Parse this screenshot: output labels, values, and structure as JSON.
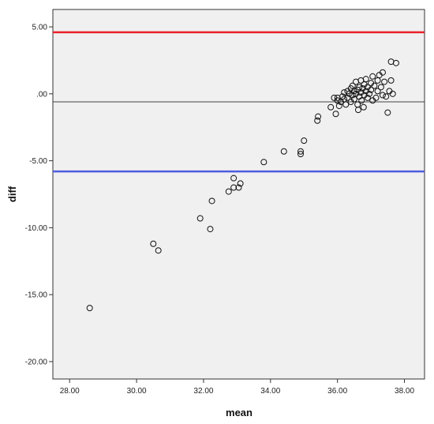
{
  "chart_data": {
    "type": "scatter",
    "title": "",
    "xlabel": "mean",
    "ylabel": "diff",
    "xlim": [
      27.5,
      38.6
    ],
    "ylim": [
      -21.3,
      6.3
    ],
    "x_ticks": [
      28,
      30,
      32,
      34,
      36,
      38
    ],
    "x_tick_labels": [
      "28.00",
      "30.00",
      "32.00",
      "34.00",
      "36.00",
      "38.00"
    ],
    "y_ticks": [
      5,
      0,
      -5,
      -10,
      -15,
      -20
    ],
    "y_tick_labels": [
      "5.00",
      ".00",
      "-5.00",
      "-10.00",
      "-15.00",
      "-20.00"
    ],
    "grid": false,
    "legend": "none",
    "reference_lines": [
      {
        "value": 4.6,
        "color": "#e8212b"
      },
      {
        "value": -0.6,
        "color": "#444444"
      },
      {
        "value": -5.8,
        "color": "#4e5de0"
      }
    ],
    "series": [
      {
        "marker": "open-circle",
        "color": "#111111",
        "points": [
          [
            28.6,
            -16.0
          ],
          [
            30.5,
            -11.2
          ],
          [
            30.65,
            -11.7
          ],
          [
            31.9,
            -9.3
          ],
          [
            32.2,
            -10.1
          ],
          [
            32.25,
            -8.0
          ],
          [
            32.75,
            -7.3
          ],
          [
            32.9,
            -7.0
          ],
          [
            32.9,
            -6.3
          ],
          [
            33.05,
            -7.0
          ],
          [
            33.1,
            -6.7
          ],
          [
            33.8,
            -5.1
          ],
          [
            34.4,
            -4.3
          ],
          [
            34.9,
            -4.3
          ],
          [
            34.9,
            -4.5
          ],
          [
            35.0,
            -3.5
          ],
          [
            35.4,
            -2.0
          ],
          [
            35.42,
            -1.7
          ],
          [
            35.8,
            -1.0
          ],
          [
            35.9,
            -0.3
          ],
          [
            35.95,
            -1.5
          ],
          [
            36.0,
            -0.5
          ],
          [
            36.0,
            -0.3
          ],
          [
            36.05,
            -0.9
          ],
          [
            36.1,
            -0.6
          ],
          [
            36.15,
            -0.2
          ],
          [
            36.2,
            0.1
          ],
          [
            36.2,
            -0.4
          ],
          [
            36.25,
            -0.8
          ],
          [
            36.3,
            0.2
          ],
          [
            36.3,
            -0.3
          ],
          [
            36.35,
            0.0
          ],
          [
            36.4,
            0.4
          ],
          [
            36.4,
            -0.6
          ],
          [
            36.45,
            0.6
          ],
          [
            36.45,
            -0.1
          ],
          [
            36.5,
            0.2
          ],
          [
            36.5,
            -0.4
          ],
          [
            36.55,
            0.9
          ],
          [
            36.55,
            0.0
          ],
          [
            36.6,
            0.3
          ],
          [
            36.6,
            -0.8
          ],
          [
            36.62,
            -1.2
          ],
          [
            36.65,
            0.5
          ],
          [
            36.65,
            -0.2
          ],
          [
            36.7,
            1.0
          ],
          [
            36.7,
            0.1
          ],
          [
            36.72,
            -0.5
          ],
          [
            36.75,
            0.4
          ],
          [
            36.78,
            -1.0
          ],
          [
            36.8,
            0.7
          ],
          [
            36.8,
            -0.1
          ],
          [
            36.85,
            1.1
          ],
          [
            36.85,
            0.2
          ],
          [
            36.9,
            0.5
          ],
          [
            36.9,
            -0.3
          ],
          [
            36.95,
            0.0
          ],
          [
            37.0,
            0.8
          ],
          [
            37.0,
            0.3
          ],
          [
            37.05,
            1.3
          ],
          [
            37.05,
            -0.5
          ],
          [
            37.1,
            0.6
          ],
          [
            37.15,
            -0.3
          ],
          [
            37.2,
            1.0
          ],
          [
            37.2,
            0.2
          ],
          [
            37.25,
            1.4
          ],
          [
            37.3,
            0.5
          ],
          [
            37.35,
            1.6
          ],
          [
            37.35,
            -0.1
          ],
          [
            37.4,
            0.9
          ],
          [
            37.45,
            -0.2
          ],
          [
            37.5,
            -1.4
          ],
          [
            37.55,
            0.2
          ],
          [
            37.6,
            2.4
          ],
          [
            37.6,
            1.0
          ],
          [
            37.65,
            0.0
          ],
          [
            37.75,
            2.3
          ]
        ]
      }
    ]
  }
}
